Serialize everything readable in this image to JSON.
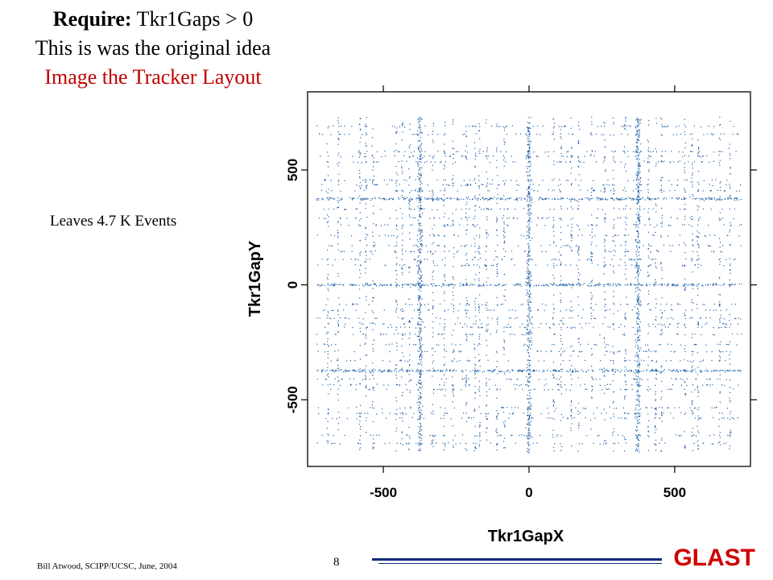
{
  "slide": {
    "require_label": "Require:",
    "require_condition": "Tkr1Gaps > 0",
    "line2": "This is was the original idea",
    "line3": "Image the Tracker Layout",
    "leaves": "Leaves 4.7 K Events",
    "footer_author": "Bill Atwood,  SCIPP/UCSC, June, 2004",
    "page_number": "8",
    "logo_text": "GLAST",
    "colors": {
      "red": "#c00000",
      "points": "#1f5fa8",
      "logo_bar": "#0b2a7a"
    }
  },
  "chart_data": {
    "type": "scatter",
    "xlabel": "Tkr1GapX",
    "ylabel": "Tkr1GapY",
    "xlim": [
      -760,
      760
    ],
    "ylim": [
      -790,
      840
    ],
    "xticks": [
      -500,
      0,
      500
    ],
    "yticks": [
      -500,
      0,
      500
    ],
    "grid": false,
    "tower_gaps": [
      -374,
      0,
      374
    ],
    "strip_lines": [
      -690,
      -655,
      -580,
      -560,
      -535,
      -455,
      -435,
      -410,
      -330,
      -290,
      -260,
      -215,
      -185,
      -170,
      -145,
      -110,
      -85,
      85,
      110,
      145,
      170,
      215,
      260,
      290,
      330,
      410,
      435,
      455,
      535,
      560,
      580,
      655,
      690
    ],
    "event_count": "4.7 K",
    "point_color": "#1f5fa8"
  }
}
